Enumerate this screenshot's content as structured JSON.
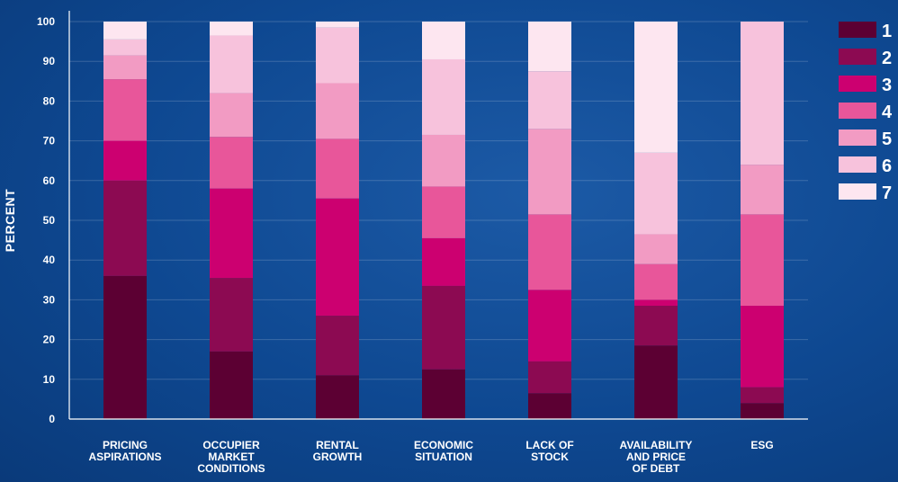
{
  "chart_data": {
    "type": "bar",
    "stacked": true,
    "title": "",
    "xlabel": "",
    "ylabel": "PERCENT",
    "ylim": [
      0,
      100
    ],
    "yticks": [
      0,
      10,
      20,
      30,
      40,
      50,
      60,
      70,
      80,
      90,
      100
    ],
    "grid": true,
    "legend_position": "right",
    "categories": [
      [
        "PRICING",
        "ASPIRATIONS"
      ],
      [
        "OCCUPIER",
        "MARKET",
        "CONDITIONS"
      ],
      [
        "RENTAL",
        "GROWTH"
      ],
      [
        "ECONOMIC",
        "SITUATION"
      ],
      [
        "LACK OF",
        "STOCK"
      ],
      [
        "AVAILABILITY",
        "AND PRICE",
        "OF DEBT"
      ],
      [
        "ESG"
      ]
    ],
    "series": [
      {
        "name": "1",
        "color": "#5c0033",
        "values": [
          36,
          17,
          11,
          12.5,
          6.5,
          18.5,
          4
        ]
      },
      {
        "name": "2",
        "color": "#8c0a52",
        "values": [
          24,
          18.5,
          15,
          21,
          8,
          10,
          4
        ]
      },
      {
        "name": "3",
        "color": "#cc0070",
        "values": [
          10,
          22.5,
          29.5,
          12,
          18,
          1.5,
          20.5
        ]
      },
      {
        "name": "4",
        "color": "#e8569a",
        "values": [
          15.5,
          13,
          15,
          13,
          19,
          9,
          23
        ]
      },
      {
        "name": "5",
        "color": "#f29bc3",
        "values": [
          6,
          11,
          14,
          13,
          21.5,
          7.5,
          12.5
        ]
      },
      {
        "name": "6",
        "color": "#f7c2dc",
        "values": [
          4,
          14.5,
          14,
          19,
          14.5,
          20.5,
          36
        ]
      },
      {
        "name": "7",
        "color": "#fde6f0",
        "values": [
          4.5,
          3.5,
          1.5,
          9.5,
          12.5,
          33,
          0
        ]
      }
    ]
  }
}
